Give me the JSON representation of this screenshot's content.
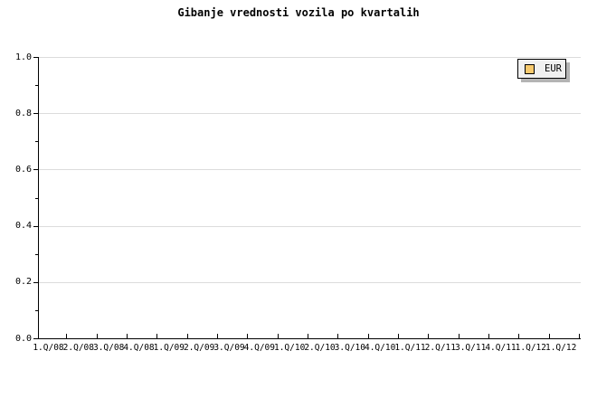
{
  "chart": {
    "title": "Gibanje vrednosti vozila po kvartalih",
    "legend": {
      "items": [
        {
          "label": "EUR",
          "swatch_color": "#F8CA6E"
        }
      ]
    }
  },
  "chart_data": {
    "type": "line",
    "title": "Gibanje vrednosti vozila po kvartalih",
    "categories": [
      "1.Q/08",
      "2.Q/08",
      "3.Q/08",
      "4.Q/08",
      "1.Q/09",
      "2.Q/09",
      "3.Q/09",
      "4.Q/09",
      "1.Q/10",
      "2.Q/10",
      "3.Q/10",
      "4.Q/10",
      "1.Q/11",
      "2.Q/11",
      "3.Q/11",
      "4.Q/11",
      "1.Q/12",
      "1.Q/12"
    ],
    "series": [
      {
        "name": "EUR",
        "color": "#F8CA6E",
        "values": []
      }
    ],
    "xlabel": "",
    "ylabel": "",
    "ylim": [
      0,
      1
    ],
    "y_major_ticks": [
      0.0,
      0.2,
      0.4,
      0.6,
      0.8,
      1.0
    ],
    "y_tick_labels": [
      "0.0",
      "0.2",
      "0.4",
      "0.6",
      "0.8",
      "1.0"
    ],
    "y_minor_ticks": [
      0.1,
      0.3,
      0.5,
      0.7,
      0.9
    ],
    "grid": "horizontal-major",
    "legend_position": "top-right",
    "colors": {
      "background": "#ffffff",
      "gridline": "#dcdcdc",
      "axis": "#000000",
      "text": "#000000",
      "legend_background": "#f0f0f0",
      "legend_shadow": "#b4b4b4",
      "series_eur": "#F8CA6E"
    }
  }
}
